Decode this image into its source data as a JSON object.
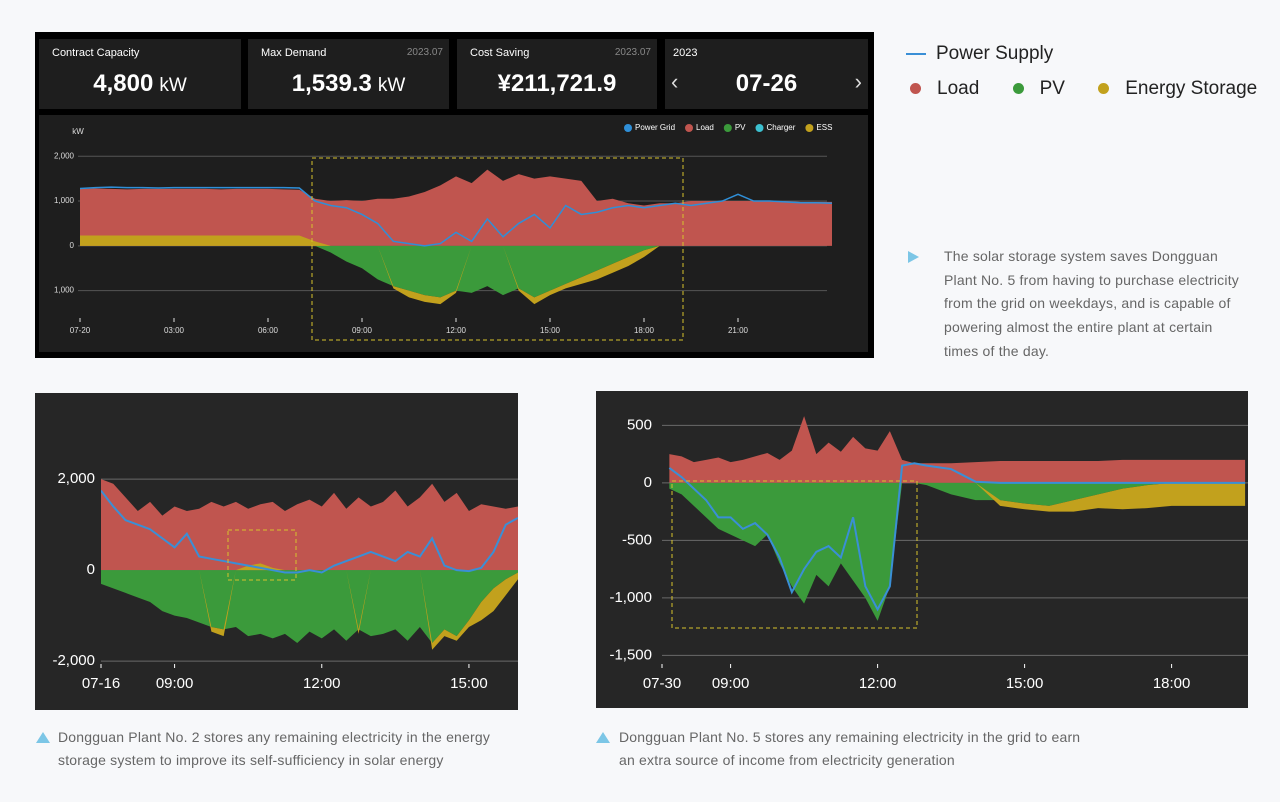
{
  "kpi_cards": [
    {
      "label": "Contract Capacity",
      "value": "4,800",
      "unit": "kW"
    },
    {
      "label": "Max Demand",
      "period": "2023.07",
      "value": "1,539.3",
      "unit": "kW"
    },
    {
      "label": "Cost Saving",
      "period": "2023.07",
      "value": "¥211,721.9"
    },
    {
      "year": "2023",
      "date": "07-26"
    }
  ],
  "description": "The solar storage system saves Dongguan Plant No. 5 from having to purchase electricity from the grid on weekdays, and is capable of powering almost the entire plant at certain times of the day.",
  "chart_data": [
    {
      "type": "area",
      "y_label": "kW",
      "legend": "top-right",
      "grid": true,
      "xlim": [
        0,
        24
      ],
      "ylim": [
        -1700,
        2250
      ],
      "xticks": [
        {
          "value": 0,
          "label": "07-20"
        },
        {
          "value": 3,
          "label": "03:00"
        },
        {
          "value": 6,
          "label": "06:00"
        },
        {
          "value": 9,
          "label": "09:00"
        },
        {
          "value": 12,
          "label": "12:00"
        },
        {
          "value": 15,
          "label": "15:00"
        },
        {
          "value": 18,
          "label": "18:00"
        },
        {
          "value": 21,
          "label": "21:00"
        }
      ],
      "yticks": [
        {
          "value": 2000,
          "label": "2,000"
        },
        {
          "value": 1000,
          "label": "1,000"
        },
        0,
        {
          "value": -1000,
          "label": "1,000"
        }
      ],
      "x": [
        0,
        0.5,
        1,
        1.5,
        2,
        2.5,
        3,
        3.5,
        4,
        4.5,
        5,
        5.5,
        6,
        6.5,
        7,
        7.5,
        8,
        8.5,
        9,
        9.5,
        10,
        10.5,
        11,
        11.5,
        12,
        12.5,
        13,
        13.5,
        14,
        14.5,
        15,
        15.5,
        16,
        16.5,
        17,
        17.5,
        18,
        18.5,
        19,
        19.5,
        20,
        20.5,
        21,
        21.5,
        22,
        22.5,
        23,
        23.5,
        24
      ],
      "series": [
        {
          "name": "Power Grid",
          "style": "line",
          "color": "#2f8fd8",
          "values": [
            1280,
            1300,
            1310,
            1300,
            1300,
            1290,
            1300,
            1300,
            1300,
            1300,
            1300,
            1300,
            1300,
            1300,
            1290,
            1000,
            900,
            850,
            700,
            500,
            100,
            50,
            0,
            50,
            300,
            100,
            600,
            200,
            500,
            700,
            400,
            900,
            700,
            750,
            850,
            900,
            850,
            900,
            950,
            900,
            950,
            1000,
            1150,
            1000,
            1000,
            980,
            960,
            960,
            950
          ]
        },
        {
          "name": "Load",
          "style": "area",
          "color": "#c0554f",
          "values": [
            1270,
            1280,
            1270,
            1260,
            1270,
            1270,
            1270,
            1270,
            1270,
            1260,
            1270,
            1270,
            1270,
            1260,
            1250,
            1050,
            1000,
            1020,
            1000,
            1050,
            1050,
            1100,
            1200,
            1350,
            1550,
            1400,
            1700,
            1450,
            1600,
            1500,
            1550,
            1500,
            1450,
            1000,
            1050,
            950,
            900,
            950,
            950,
            1000,
            1000,
            1000,
            1000,
            1000,
            1000,
            1000,
            980,
            980,
            980
          ]
        },
        {
          "name": "PV",
          "style": "area",
          "stack": true,
          "color": "#3b9a3b",
          "values": [
            0,
            0,
            0,
            0,
            0,
            0,
            0,
            0,
            0,
            0,
            0,
            0,
            0,
            0,
            0,
            0,
            -150,
            -350,
            -500,
            -750,
            -900,
            -1000,
            -1100,
            -1150,
            -1000,
            -1050,
            -900,
            -1100,
            -950,
            -1150,
            -1000,
            -850,
            -700,
            -550,
            -400,
            -250,
            -100,
            0,
            0,
            0,
            0,
            0,
            0,
            0,
            0,
            0,
            0,
            0,
            0
          ]
        },
        {
          "name": "Charger",
          "style": "area",
          "stack": true,
          "color": "#3cc0d0",
          "values": [
            0,
            0,
            0,
            0,
            0,
            0,
            0,
            0,
            0,
            0,
            0,
            0,
            0,
            0,
            0,
            0,
            0,
            0,
            0,
            0,
            0,
            0,
            0,
            0,
            0,
            0,
            0,
            0,
            0,
            0,
            0,
            0,
            0,
            0,
            0,
            0,
            0,
            0,
            0,
            0,
            0,
            0,
            0,
            0,
            0,
            0,
            0,
            0,
            0
          ]
        },
        {
          "name": "ESS",
          "style": "area",
          "stack": true,
          "color": "#c2a11d",
          "values": [
            230,
            230,
            230,
            230,
            230,
            230,
            230,
            230,
            230,
            230,
            230,
            230,
            230,
            230,
            230,
            100,
            0,
            0,
            0,
            0,
            -50,
            -150,
            -150,
            -150,
            -50,
            0,
            0,
            0,
            -50,
            -150,
            -100,
            -100,
            -150,
            -200,
            -200,
            -200,
            -150,
            0,
            0,
            0,
            0,
            0,
            0,
            0,
            0,
            0,
            0,
            0,
            0
          ]
        }
      ]
    },
    {
      "type": "area",
      "grid": true,
      "caption": "Dongguan Plant No. 2 stores any remaining electricity in the energy storage system to improve its self-sufficiency in solar energy",
      "xlim": [
        7.5,
        16
      ],
      "ylim": [
        -2150,
        3850
      ],
      "xticks": [
        {
          "value": 7.5,
          "label": "07-16"
        },
        {
          "value": 9,
          "label": "09:00"
        },
        {
          "value": 12,
          "label": "12:00"
        },
        {
          "value": 15,
          "label": "15:00"
        }
      ],
      "yticks": [
        {
          "value": 2000,
          "label": "2,000"
        },
        0,
        {
          "value": -2000,
          "label": "-2,000"
        }
      ],
      "x": [
        7.5,
        7.75,
        8,
        8.25,
        8.5,
        8.75,
        9,
        9.25,
        9.5,
        9.75,
        10,
        10.25,
        10.5,
        10.75,
        11,
        11.25,
        11.5,
        11.75,
        12,
        12.25,
        12.5,
        12.75,
        13,
        13.25,
        13.5,
        13.75,
        14,
        14.25,
        14.5,
        14.75,
        15,
        15.25,
        15.5,
        15.75,
        16
      ],
      "series": [
        {
          "name": "Power Supply",
          "style": "line",
          "color": "#3a8fd6",
          "values": [
            1750,
            1400,
            1100,
            1000,
            900,
            700,
            500,
            800,
            300,
            250,
            200,
            150,
            100,
            50,
            0,
            -50,
            -50,
            0,
            -50,
            100,
            200,
            300,
            400,
            300,
            200,
            400,
            300,
            700,
            100,
            0,
            -20,
            50,
            400,
            1000,
            1150
          ]
        },
        {
          "name": "Load",
          "style": "area",
          "color": "#c0554f",
          "values": [
            2000,
            1900,
            1600,
            1300,
            1500,
            1200,
            1400,
            1300,
            1350,
            1500,
            1400,
            1500,
            1350,
            1450,
            1500,
            1300,
            1450,
            1550,
            1400,
            1700,
            1350,
            1600,
            1400,
            1500,
            1750,
            1400,
            1600,
            1900,
            1500,
            1700,
            1300,
            1450,
            1400,
            1350,
            1400
          ]
        },
        {
          "name": "PV",
          "style": "area",
          "stack": true,
          "color": "#3b9a3b",
          "values": [
            -300,
            -400,
            -500,
            -600,
            -700,
            -900,
            -1000,
            -1050,
            -1150,
            -1250,
            -1300,
            -1250,
            -1450,
            -1400,
            -1500,
            -1400,
            -1600,
            -1350,
            -1500,
            -1300,
            -1550,
            -1300,
            -1450,
            -1400,
            -1300,
            -1550,
            -1250,
            -1600,
            -1300,
            -1450,
            -1100,
            -700,
            -400,
            -200,
            -50
          ]
        },
        {
          "name": "Energy Storage",
          "style": "area",
          "stack": true,
          "color": "#c2a11d",
          "values": [
            0,
            0,
            0,
            0,
            0,
            0,
            0,
            0,
            0,
            -100,
            -150,
            0,
            100,
            150,
            50,
            0,
            0,
            0,
            0,
            0,
            0,
            -100,
            0,
            0,
            0,
            0,
            0,
            -150,
            -150,
            -100,
            -150,
            -400,
            -500,
            -350,
            -150
          ]
        }
      ]
    },
    {
      "type": "area",
      "grid": true,
      "caption": "Dongguan Plant No. 5 stores any remaining electricity in the grid to earn an extra source of income from electricity generation",
      "xlim": [
        7.6,
        19.6
      ],
      "ylim": [
        -1610,
        790
      ],
      "xticks": [
        {
          "value": 7.6,
          "label": "07-30"
        },
        {
          "value": 9,
          "label": "09:00"
        },
        {
          "value": 12,
          "label": "12:00"
        },
        {
          "value": 15,
          "label": "15:00"
        },
        {
          "value": 18,
          "label": "18:00"
        }
      ],
      "yticks": [
        500,
        0,
        -500,
        {
          "value": -1000,
          "label": "-1,000"
        },
        {
          "value": -1500,
          "label": "-1,500"
        }
      ],
      "x": [
        7.75,
        8,
        8.25,
        8.5,
        8.75,
        9,
        9.25,
        9.5,
        9.75,
        10,
        10.25,
        10.5,
        10.75,
        11,
        11.25,
        11.5,
        11.75,
        12,
        12.25,
        12.5,
        12.75,
        13,
        13.5,
        14,
        14.5,
        15,
        15.5,
        16,
        16.5,
        17,
        17.5,
        18,
        18.5,
        19,
        19.5
      ],
      "series": [
        {
          "style": "line",
          "color": "#3a8fd6",
          "values": [
            130,
            50,
            -50,
            -150,
            -300,
            -300,
            -400,
            -350,
            -450,
            -650,
            -950,
            -750,
            -600,
            -550,
            -650,
            -300,
            -900,
            -1100,
            -900,
            150,
            170,
            150,
            120,
            10,
            0,
            0,
            0,
            0,
            0,
            0,
            0,
            0,
            0,
            0,
            0
          ]
        },
        {
          "style": "area",
          "color": "#c0554f",
          "values": [
            250,
            230,
            180,
            200,
            220,
            180,
            200,
            230,
            260,
            200,
            280,
            580,
            250,
            350,
            270,
            400,
            300,
            280,
            450,
            200,
            170,
            170,
            170,
            180,
            190,
            190,
            190,
            190,
            190,
            200,
            200,
            200,
            200,
            200,
            200
          ]
        },
        {
          "style": "area",
          "stack": true,
          "color": "#3b9a3b",
          "values": [
            -50,
            -100,
            -200,
            -300,
            -400,
            -450,
            -500,
            -550,
            -450,
            -700,
            -900,
            -1050,
            -800,
            -900,
            -700,
            -850,
            -1000,
            -1200,
            -900,
            0,
            0,
            -20,
            -100,
            -150,
            -150,
            -180,
            -200,
            -150,
            -100,
            -50,
            -20,
            0,
            0,
            0,
            0
          ]
        },
        {
          "style": "area",
          "stack": true,
          "color": "#c2a11d",
          "values": [
            0,
            0,
            0,
            0,
            0,
            0,
            0,
            0,
            0,
            0,
            0,
            0,
            0,
            0,
            0,
            0,
            0,
            0,
            0,
            0,
            0,
            0,
            0,
            0,
            -50,
            -50,
            -50,
            -100,
            -120,
            -180,
            -200,
            -200,
            -200,
            -200,
            -200
          ]
        }
      ]
    }
  ]
}
